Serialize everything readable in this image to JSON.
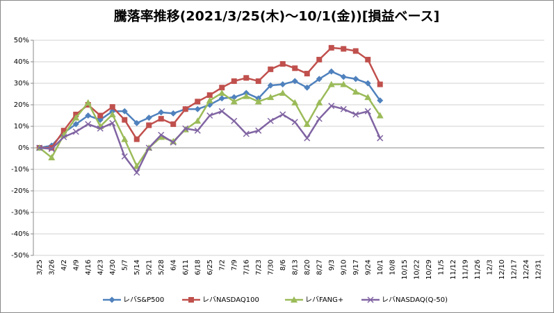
{
  "chart_data": {
    "type": "line",
    "title": "騰落率推移(2021/3/25(木)～10/1(金))[損益ベース]",
    "categories": [
      "3/25",
      "3/26",
      "4/2",
      "4/9",
      "4/16",
      "4/23",
      "4/30",
      "5/7",
      "5/14",
      "5/21",
      "5/28",
      "6/4",
      "6/11",
      "6/18",
      "6/25",
      "7/2",
      "7/9",
      "7/16",
      "7/23",
      "7/30",
      "8/6",
      "8/13",
      "8/20",
      "8/27",
      "9/3",
      "9/10",
      "9/17",
      "9/24",
      "10/1",
      "10/8",
      "10/15",
      "10/22",
      "10/29",
      "11/5",
      "11/12",
      "11/19",
      "11/26",
      "12/3",
      "12/10",
      "12/17",
      "12/24",
      "12/31"
    ],
    "series": [
      {
        "name": "レバS&P500",
        "color": "#4f81bd",
        "marker": "diamond",
        "values": [
          0,
          1,
          7,
          11,
          15,
          13,
          17,
          17,
          11.5,
          14,
          16.5,
          16,
          18,
          18,
          20,
          23,
          23.5,
          25.5,
          23,
          29,
          29.5,
          31,
          28,
          32,
          35.5,
          33,
          32,
          30,
          22,
          null,
          null,
          null,
          null,
          null,
          null,
          null,
          null,
          null,
          null,
          null,
          null,
          null
        ]
      },
      {
        "name": "レバNASDAQ100",
        "color": "#c0504d",
        "marker": "square",
        "values": [
          0,
          0,
          8,
          15.5,
          20,
          15,
          19,
          13,
          4,
          10.5,
          13.5,
          11,
          18,
          21.5,
          24.5,
          28,
          31,
          32.5,
          31,
          36.5,
          39,
          37,
          34.5,
          41,
          46.5,
          46,
          45,
          41,
          29.5,
          null,
          null,
          null,
          null,
          null,
          null,
          null,
          null,
          null,
          null,
          null,
          null,
          null
        ]
      },
      {
        "name": "レバFANG+",
        "color": "#9bbb59",
        "marker": "triangle",
        "values": [
          0,
          -4.5,
          6,
          14,
          21,
          10,
          15.5,
          4,
          -8.5,
          0,
          5,
          3,
          8.5,
          12.5,
          22,
          25.5,
          21.5,
          24,
          21.5,
          23.5,
          25.5,
          21,
          11,
          21,
          29.5,
          29.5,
          26,
          23.5,
          15,
          null,
          null,
          null,
          null,
          null,
          null,
          null,
          null,
          null,
          null,
          null,
          null,
          null
        ]
      },
      {
        "name": "レバNASDAQ(Q-50)",
        "color": "#8064a2",
        "marker": "x",
        "values": [
          0,
          -0.5,
          5,
          7.5,
          11,
          9,
          11.5,
          -4,
          -11.5,
          0,
          6,
          2.5,
          9,
          8,
          15,
          17,
          12.5,
          6.5,
          8,
          12.5,
          15.5,
          12,
          4.5,
          13.5,
          19.5,
          18,
          15.5,
          17,
          4.5,
          null,
          null,
          null,
          null,
          null,
          null,
          null,
          null,
          null,
          null,
          null,
          null,
          null
        ]
      }
    ],
    "ylim": [
      -50,
      50
    ],
    "yticks": [
      {
        "value": -50,
        "label": "-50%"
      },
      {
        "value": -40,
        "label": "-40%"
      },
      {
        "value": -30,
        "label": "-30%"
      },
      {
        "value": -20,
        "label": "-20%"
      },
      {
        "value": -10,
        "label": "-10%"
      },
      {
        "value": 0,
        "label": "0%"
      },
      {
        "value": 10,
        "label": "10%"
      },
      {
        "value": 20,
        "label": "20%"
      },
      {
        "value": 30,
        "label": "30%"
      },
      {
        "value": 40,
        "label": "40%"
      },
      {
        "value": 50,
        "label": "50%"
      }
    ],
    "grid": true,
    "legend": "bottom"
  }
}
